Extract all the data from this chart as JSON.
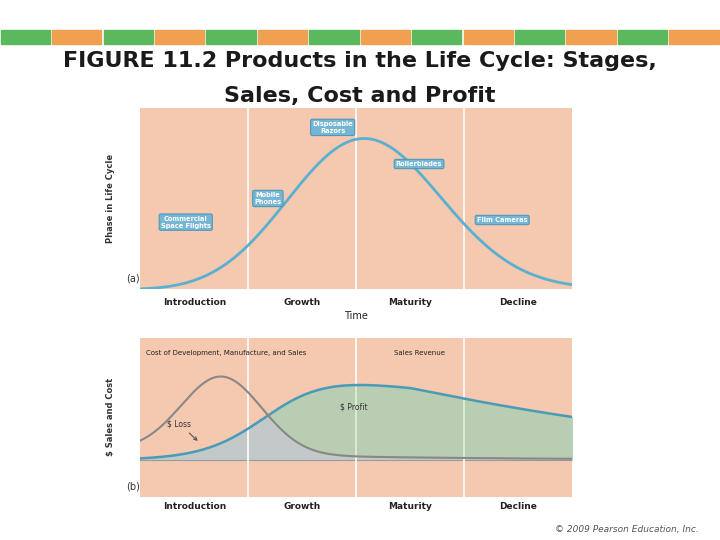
{
  "title_line1": "FIGURE 11.2 Products in the Life Cycle: Stages,",
  "title_line2": "Sales, Cost and Profit",
  "title_fontsize": 16,
  "top_bar_color": "#3db8d4",
  "segment_colors": [
    "#5cb85c",
    "#f0a050",
    "#5cb85c",
    "#f0a050",
    "#5cb85c",
    "#f0a050",
    "#5cb85c",
    "#f0a050",
    "#5cb85c",
    "#f0a050",
    "#5cb85c",
    "#f0a050",
    "#5cb85c",
    "#f0a050"
  ],
  "bg_color": "#ffffff",
  "chart_bg_salmon": "#f5c8b0",
  "chart_bg_green": "#b8cc90",
  "stages": [
    "Introduction",
    "Growth",
    "Maturity",
    "Decline"
  ],
  "ylabel_top": "Phase in Life Cycle",
  "xlabel": "Time",
  "ylabel_bottom": "$ Sales and Cost",
  "copyright": "© 2009 Pearson Education, Inc.",
  "label_a": "(a)",
  "label_b": "(b)"
}
